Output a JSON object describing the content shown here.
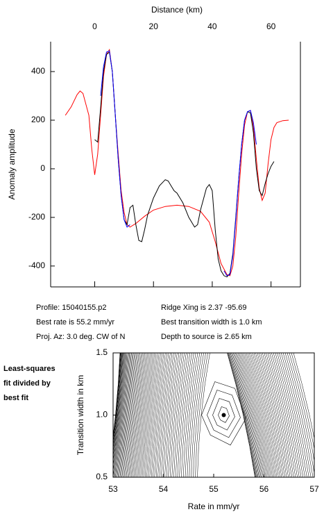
{
  "chart_data": [
    {
      "type": "line",
      "x_label": "Distance (km)",
      "y_label": "Anomaly amplitude",
      "xlim": [
        -15,
        70
      ],
      "ylim": [
        -486,
        523
      ],
      "xticks": [
        0,
        20,
        40,
        60
      ],
      "yticks": [
        -400,
        -200,
        0,
        200,
        400
      ],
      "series": [
        {
          "color": "#ff0000",
          "x": [
            -10,
            -8,
            -6,
            -5,
            -4,
            -2,
            -1,
            0,
            1,
            2,
            3,
            4,
            5,
            6,
            7,
            8,
            9,
            10,
            11,
            12,
            14,
            17,
            20,
            24,
            28,
            32,
            36,
            39,
            41,
            43,
            45,
            46,
            47,
            48,
            49,
            50,
            51,
            52,
            53,
            54,
            55,
            56,
            57,
            58,
            59,
            60,
            61,
            62,
            64,
            66
          ],
          "values": [
            220,
            255,
            305,
            320,
            310,
            220,
            80,
            -25,
            60,
            220,
            380,
            470,
            490,
            400,
            220,
            60,
            -90,
            -180,
            -230,
            -240,
            -225,
            -195,
            -170,
            -155,
            -150,
            -155,
            -175,
            -220,
            -300,
            -390,
            -435,
            -440,
            -400,
            -280,
            -100,
            60,
            180,
            235,
            240,
            175,
            40,
            -80,
            -130,
            -100,
            20,
            120,
            170,
            190,
            198,
            200
          ]
        },
        {
          "color": "#000000",
          "x": [
            0,
            1,
            2,
            3,
            4,
            5,
            6,
            7,
            8,
            9,
            10,
            11,
            12,
            13,
            14,
            15,
            16,
            17,
            18,
            20,
            22,
            24,
            25,
            26,
            27,
            28,
            30,
            32,
            34,
            35,
            36,
            38,
            39,
            40,
            41,
            42,
            43,
            44,
            45,
            46,
            47,
            48,
            49,
            50,
            51,
            52,
            53,
            54,
            55,
            56,
            57,
            58,
            59,
            60,
            61
          ],
          "values": [
            120,
            110,
            250,
            400,
            470,
            480,
            400,
            220,
            40,
            -110,
            -210,
            -230,
            -160,
            -150,
            -230,
            -295,
            -300,
            -250,
            -190,
            -120,
            -70,
            -45,
            -50,
            -70,
            -90,
            -100,
            -140,
            -200,
            -240,
            -230,
            -170,
            -80,
            -65,
            -90,
            -250,
            -370,
            -420,
            -440,
            -445,
            -430,
            -350,
            -200,
            -40,
            100,
            200,
            235,
            230,
            150,
            0,
            -90,
            -110,
            -60,
            -20,
            10,
            30
          ]
        },
        {
          "color": "#0000ff",
          "x": [
            2,
            3,
            4,
            5,
            6,
            7,
            8,
            9,
            10,
            11,
            12,
            28,
            44,
            45,
            46,
            47,
            48,
            49,
            50,
            51,
            52,
            53,
            54,
            55
          ],
          "values": [
            300,
            420,
            480,
            485,
            400,
            220,
            40,
            -110,
            -210,
            -240,
            -230,
            null,
            -420,
            -440,
            -435,
            -360,
            -210,
            -40,
            100,
            200,
            235,
            240,
            190,
            100
          ]
        }
      ]
    },
    {
      "type": "contour",
      "x_label": "Rate in mm/yr",
      "y_label": "Transition width in km",
      "xlim": [
        53,
        57
      ],
      "ylim": [
        0.5,
        1.5
      ],
      "xticks": [
        53,
        54,
        55,
        56,
        57
      ],
      "yticks": [
        0.5,
        {
          "value": 1,
          "label": "1.0"
        },
        1.5
      ],
      "best": {
        "x": 55.2,
        "y": 1.0
      }
    }
  ],
  "info": {
    "left": [
      "Profile: 15040155.p2",
      "Best rate is 55.2 mm/yr",
      "Proj. Az: 3.0 deg. CW of N"
    ],
    "right": [
      "Ridge Xing is 2.37 -95.69",
      "Best transition width is 1.0 km",
      "Depth to source is   2.65 km"
    ],
    "side": [
      "Least-squares",
      "fit divided by",
      "best fit"
    ]
  }
}
